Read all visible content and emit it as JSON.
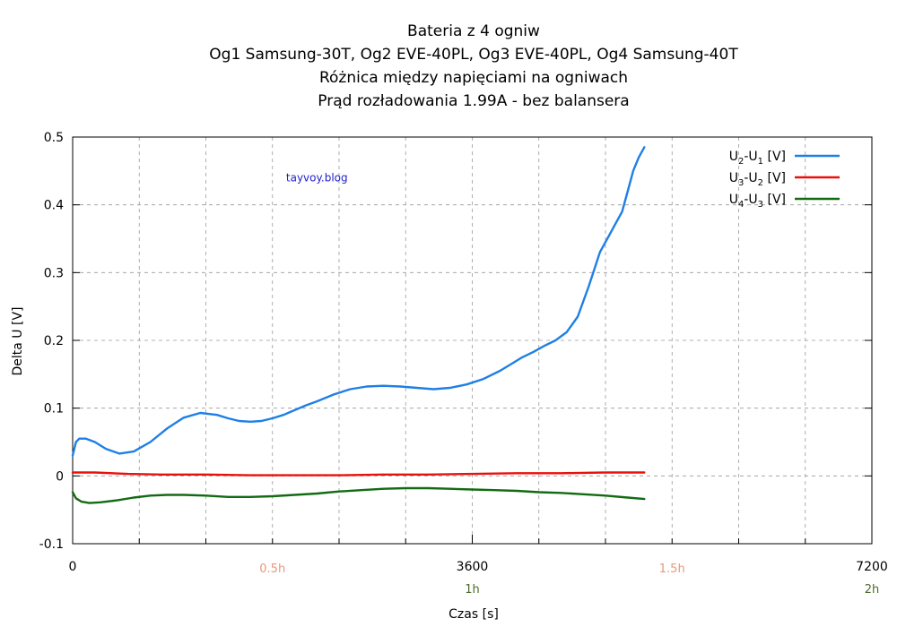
{
  "colors": {
    "series_u2u1": "#1f7fe6",
    "series_u3u2": "#e8120c",
    "series_u4u3": "#126b12",
    "half_hour_labels": "#e8997a",
    "hour_labels": "#4a6a2c",
    "watermark": "#1f1fcf",
    "grid": "#9a9a9a"
  },
  "chart_data": {
    "type": "line",
    "title": [
      "Bateria z 4 ogniw",
      "Og1 Samsung-30T,  Og2 EVE-40PL, Og3 EVE-40PL, Og4 Samsung-40T",
      "Różnica między napięciami na ogniwach",
      "Prąd rozładowania 1.99A - bez balansera"
    ],
    "xlabel": "Czas [s]",
    "ylabel": "Delta U [V]",
    "xlim": [
      0,
      7200
    ],
    "ylim": [
      -0.1,
      0.5
    ],
    "x_ticks": [
      0,
      3600,
      7200
    ],
    "x_tick_labels": [
      "0",
      "3600",
      "7200"
    ],
    "x_minor_gridlines": [
      600,
      1200,
      1800,
      2400,
      3000,
      3600,
      4200,
      4800,
      5400,
      6000,
      6600
    ],
    "y_ticks": [
      -0.1,
      0,
      0.1,
      0.2,
      0.3,
      0.4,
      0.5
    ],
    "y_tick_labels": [
      "-0.1",
      "0",
      "0.1",
      "0.2",
      "0.3",
      "0.4",
      "0.5"
    ],
    "grid": true,
    "legend_position": "top-right",
    "secondary_x_labels": [
      {
        "x": 1800,
        "text": "0.5h",
        "kind": "half"
      },
      {
        "x": 5400,
        "text": "1.5h",
        "kind": "half"
      },
      {
        "x": 3600,
        "text": "1h",
        "kind": "hour"
      },
      {
        "x": 7200,
        "text": "2h",
        "kind": "hour"
      }
    ],
    "annotation": {
      "text": "tayvoy.blog",
      "x": 2200,
      "y": 0.44
    },
    "series": [
      {
        "name": "U2-U1 [V]",
        "legend": {
          "base1": "U",
          "sub1": "2",
          "mid": "-U",
          "sub2": "1",
          "tail": " [V]"
        },
        "color_key": "series_u2u1",
        "x": [
          0,
          30,
          60,
          120,
          200,
          300,
          420,
          550,
          700,
          850,
          1000,
          1150,
          1300,
          1400,
          1500,
          1600,
          1700,
          1800,
          1900,
          2000,
          2100,
          2200,
          2350,
          2500,
          2650,
          2800,
          2950,
          3100,
          3250,
          3400,
          3550,
          3700,
          3850,
          3950,
          4050,
          4150,
          4250,
          4350,
          4450,
          4550,
          4650,
          4750,
          4850,
          4950,
          5000,
          5050,
          5100,
          5150
        ],
        "y": [
          0.03,
          0.05,
          0.055,
          0.055,
          0.05,
          0.04,
          0.033,
          0.036,
          0.05,
          0.07,
          0.086,
          0.093,
          0.09,
          0.085,
          0.081,
          0.08,
          0.081,
          0.085,
          0.09,
          0.097,
          0.104,
          0.11,
          0.12,
          0.128,
          0.132,
          0.133,
          0.132,
          0.13,
          0.128,
          0.13,
          0.135,
          0.143,
          0.155,
          0.165,
          0.175,
          0.183,
          0.192,
          0.2,
          0.212,
          0.235,
          0.28,
          0.33,
          0.36,
          0.39,
          0.42,
          0.45,
          0.47,
          0.485
        ]
      },
      {
        "name": "U3-U2 [V]",
        "legend": {
          "base1": "U",
          "sub1": "3",
          "mid": "-U",
          "sub2": "2",
          "tail": " [V]"
        },
        "color_key": "series_u3u2",
        "x": [
          0,
          200,
          500,
          800,
          1200,
          1600,
          2000,
          2400,
          2800,
          3200,
          3600,
          4000,
          4400,
          4800,
          5150
        ],
        "y": [
          0.005,
          0.005,
          0.003,
          0.002,
          0.002,
          0.001,
          0.001,
          0.001,
          0.002,
          0.002,
          0.003,
          0.004,
          0.004,
          0.005,
          0.005
        ]
      },
      {
        "name": "U4-U3 [V]",
        "legend": {
          "base1": "U",
          "sub1": "4",
          "mid": "-U",
          "sub2": "3",
          "tail": " [V]"
        },
        "color_key": "series_u4u3",
        "x": [
          0,
          30,
          80,
          150,
          250,
          400,
          550,
          700,
          850,
          1000,
          1200,
          1400,
          1600,
          1800,
          2000,
          2200,
          2400,
          2600,
          2800,
          3000,
          3200,
          3400,
          3600,
          3800,
          4000,
          4200,
          4400,
          4600,
          4800,
          5000,
          5150
        ],
        "y": [
          -0.024,
          -0.033,
          -0.038,
          -0.04,
          -0.039,
          -0.036,
          -0.032,
          -0.029,
          -0.028,
          -0.028,
          -0.029,
          -0.031,
          -0.031,
          -0.03,
          -0.028,
          -0.026,
          -0.023,
          -0.021,
          -0.019,
          -0.018,
          -0.018,
          -0.019,
          -0.02,
          -0.021,
          -0.022,
          -0.024,
          -0.025,
          -0.027,
          -0.029,
          -0.032,
          -0.034
        ]
      }
    ]
  }
}
